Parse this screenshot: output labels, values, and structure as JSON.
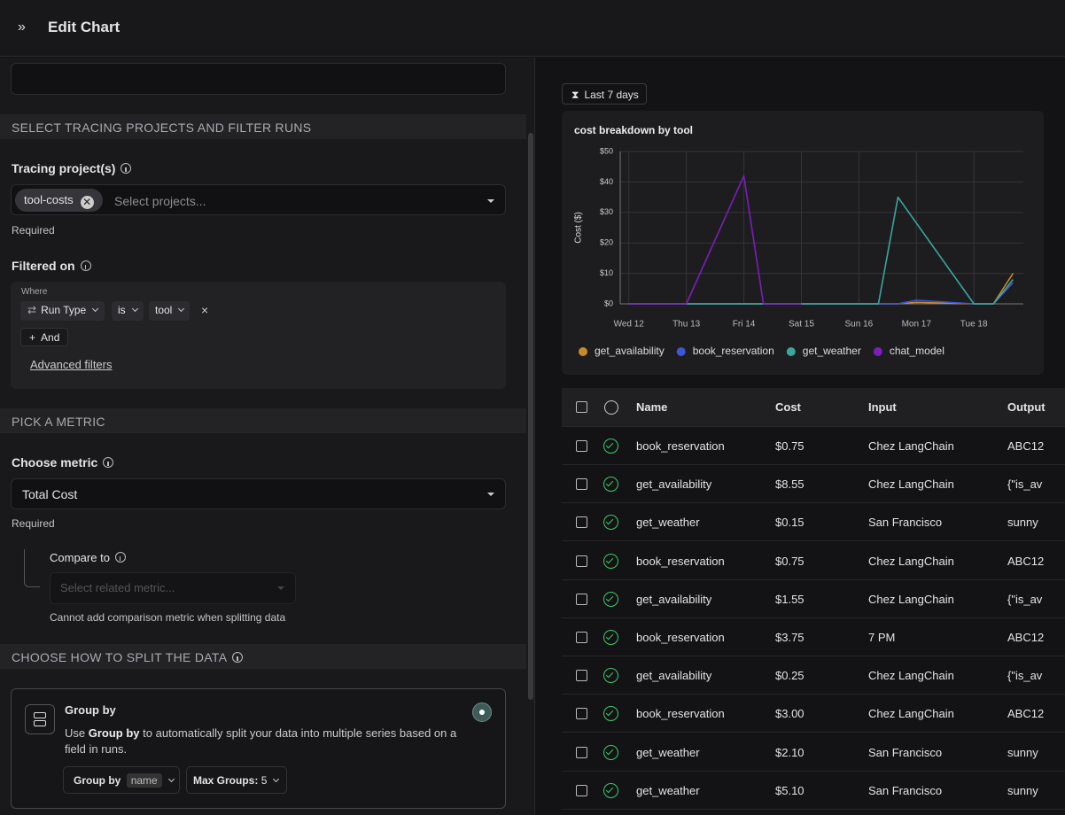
{
  "header": {
    "title": "Edit Chart"
  },
  "projects_section": {
    "heading": "SELECT TRACING PROJECTS AND FILTER RUNS",
    "project_label": "Tracing project(s)",
    "project_chip": "tool-costs",
    "project_placeholder": "Select projects...",
    "project_note": "Required",
    "filter_label": "Filtered on",
    "filter_where": "Where",
    "filter_field": "Run Type",
    "filter_operator": "is",
    "filter_value": "tool",
    "and_button": "And",
    "advanced_link": "Advanced filters"
  },
  "metric_section": {
    "heading": "PICK A METRIC",
    "metric_label": "Choose metric",
    "metric_value": "Total Cost",
    "metric_note": "Required",
    "compare_label": "Compare to",
    "compare_placeholder": "Select related metric...",
    "compare_note": "Cannot add comparison metric when splitting data"
  },
  "split_section": {
    "heading": "CHOOSE HOW TO SPLIT THE DATA",
    "group_title": "Group by",
    "group_desc_before": "Use",
    "group_desc_bold": "Group by",
    "group_desc_after": "to automatically split your data into multiple series based on a field in runs.",
    "group_by_button": "Group by",
    "group_by_field": "name",
    "max_groups_label": "Max Groups:",
    "max_groups_value": 5
  },
  "time_range": "Last 7 days",
  "chart_data": {
    "type": "line",
    "title": "cost breakdown by tool",
    "y_label": "Cost ($)",
    "x": [
      0,
      1,
      2,
      2.34,
      3,
      4,
      4.34,
      4.68,
      5,
      6,
      6.34,
      6.68
    ],
    "xlim": [
      -0.15,
      6.86
    ],
    "xticks": [
      {
        "value": 0,
        "label": "Wed 12"
      },
      {
        "value": 1,
        "label": "Thu 13"
      },
      {
        "value": 2,
        "label": "Fri 14"
      },
      {
        "value": 3,
        "label": "Sat 15"
      },
      {
        "value": 4,
        "label": "Sun 16"
      },
      {
        "value": 5,
        "label": "Mon 17"
      },
      {
        "value": 6,
        "label": "Tue 18"
      }
    ],
    "ylim": [
      0,
      50
    ],
    "yticks": [
      {
        "value": 0,
        "label": "$0"
      },
      {
        "value": 10,
        "label": "$10"
      },
      {
        "value": 20,
        "label": "$20"
      },
      {
        "value": 30,
        "label": "$30"
      },
      {
        "value": 40,
        "label": "$40"
      },
      {
        "value": 50,
        "label": "$50"
      }
    ],
    "grid": true,
    "series": [
      {
        "name": "get_availability",
        "color": "#c98a2a",
        "values": [
          0,
          0,
          0,
          0,
          0,
          0,
          0,
          0,
          0.5,
          0,
          0,
          10
        ]
      },
      {
        "name": "book_reservation",
        "color": "#3d55d6",
        "values": [
          0,
          0,
          0,
          0,
          0,
          0,
          0,
          0,
          1.2,
          0,
          0,
          7
        ]
      },
      {
        "name": "get_weather",
        "color": "#3aa69a",
        "values": [
          0,
          0,
          0,
          0,
          0,
          0,
          0,
          35,
          26.5,
          0,
          0,
          8
        ]
      },
      {
        "name": "chat_model",
        "color": "#7a1fb8",
        "values": [
          0,
          0,
          42,
          0,
          0,
          null,
          null,
          null,
          null,
          null,
          null,
          null
        ]
      }
    ]
  },
  "table": {
    "columns": [
      "Name",
      "Cost",
      "Input",
      "Output"
    ],
    "rows": [
      [
        "book_reservation",
        "$0.75",
        "Chez LangChain",
        "ABC12"
      ],
      [
        "get_availability",
        "$8.55",
        "Chez LangChain",
        "{\"is_av"
      ],
      [
        "get_weather",
        "$0.15",
        "San Francisco",
        "sunny"
      ],
      [
        "book_reservation",
        "$0.75",
        "Chez LangChain",
        "ABC12"
      ],
      [
        "get_availability",
        "$1.55",
        "Chez LangChain",
        "{\"is_av"
      ],
      [
        "book_reservation",
        "$3.75",
        "7 PM",
        "ABC12"
      ],
      [
        "get_availability",
        "$0.25",
        "Chez LangChain",
        "{\"is_av"
      ],
      [
        "book_reservation",
        "$3.00",
        "Chez LangChain",
        "ABC12"
      ],
      [
        "get_weather",
        "$2.10",
        "San Francisco",
        "sunny"
      ],
      [
        "get_weather",
        "$5.10",
        "San Francisco",
        "sunny"
      ]
    ]
  }
}
